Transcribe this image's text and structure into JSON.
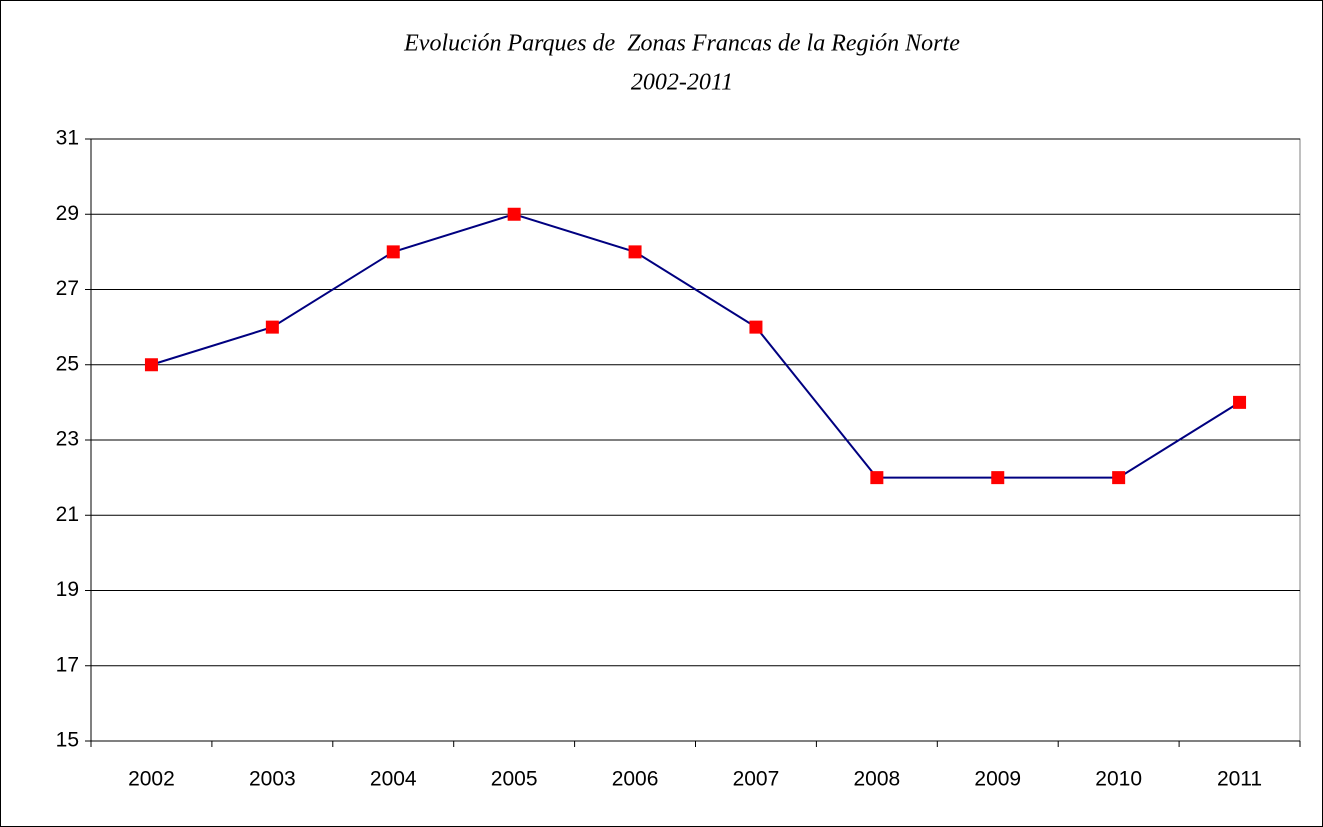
{
  "chart_data": {
    "type": "line",
    "title": "Evolución Parques de  Zonas Francas de la Región Norte",
    "subtitle": "2002-2011",
    "categories": [
      "2002",
      "2003",
      "2004",
      "2005",
      "2006",
      "2007",
      "2008",
      "2009",
      "2010",
      "2011"
    ],
    "series": [
      {
        "name": null,
        "color": "#000080",
        "marker_color": "#ff0000",
        "values": [
          25,
          26,
          28,
          29,
          28,
          26,
          22,
          22,
          22,
          24
        ]
      }
    ],
    "ylim": [
      15,
      31
    ],
    "yticks": [
      15,
      17,
      19,
      21,
      23,
      25,
      27,
      29,
      31
    ],
    "grid": true
  }
}
